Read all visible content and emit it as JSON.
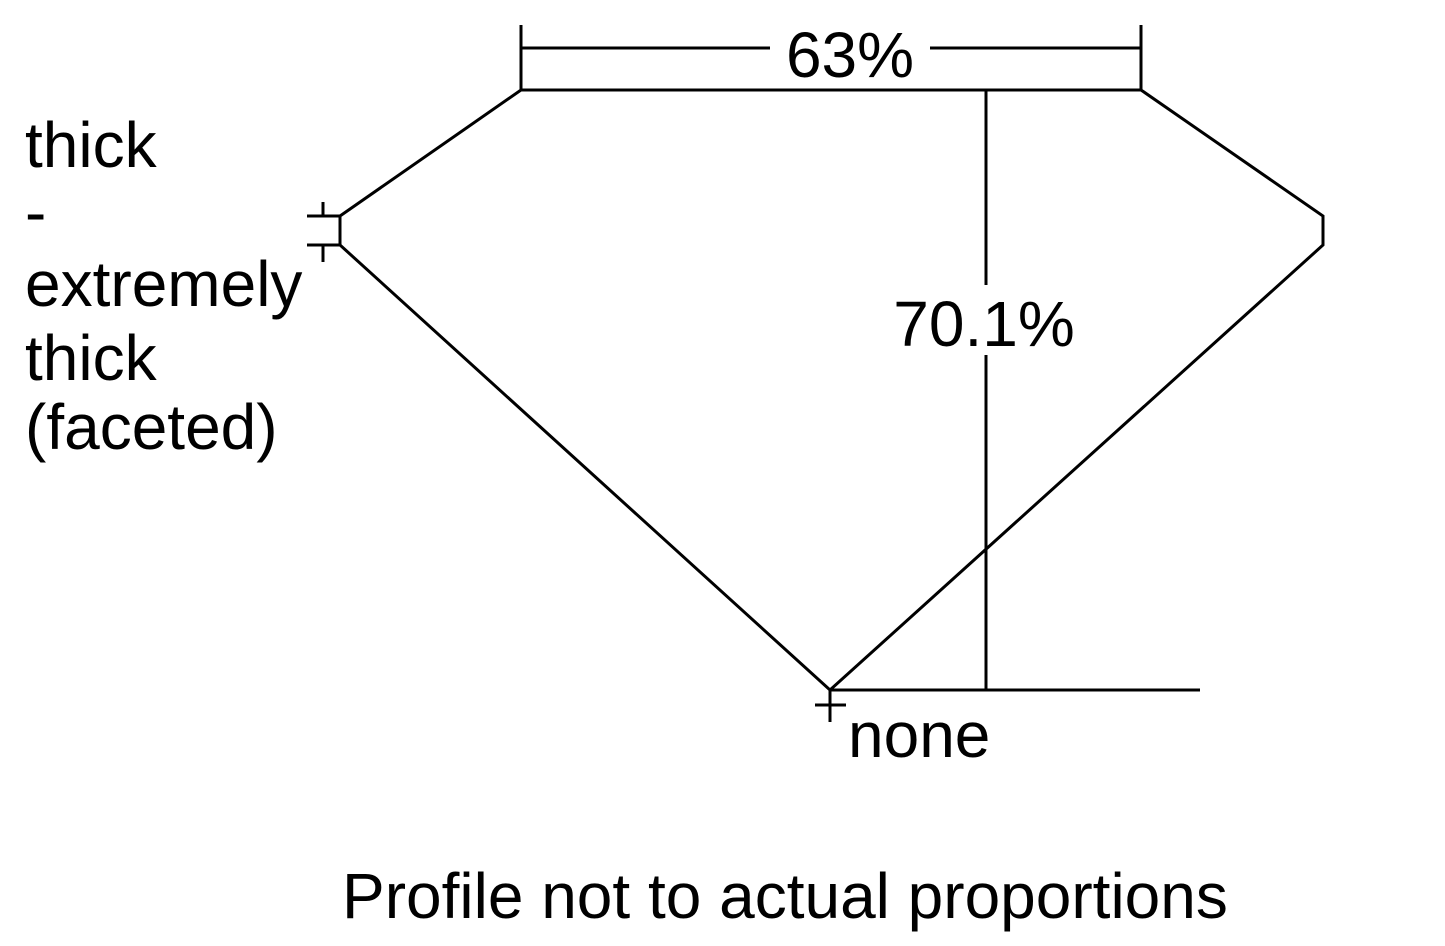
{
  "diagram": {
    "table_label": "63%",
    "depth_label": "70.1%",
    "girdle_label_lines": [
      "thick",
      "-",
      "extremely",
      "thick",
      "(faceted)"
    ],
    "culet_label": "none",
    "caption": "Profile not to actual proportions",
    "line_color": "#000000",
    "background": "#ffffff"
  }
}
